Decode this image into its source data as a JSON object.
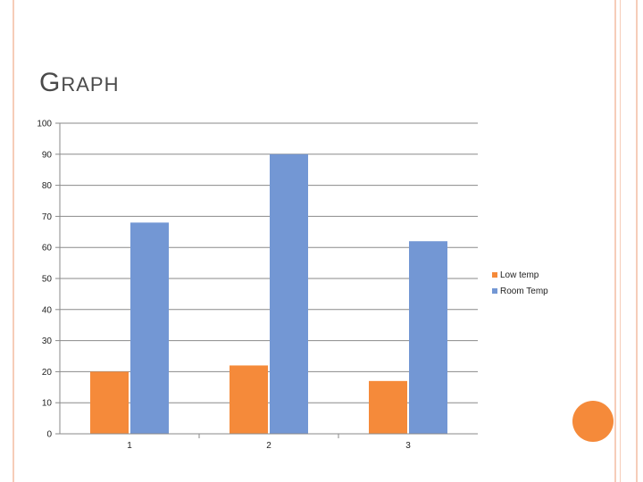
{
  "slide": {
    "title": "GRAPH"
  },
  "colors": {
    "series_low": "#f58a3a",
    "series_room": "#7397d4",
    "accent": "#f58a3a",
    "frame": "#f6cdb9"
  },
  "icons": [
    "decorative-circle"
  ],
  "chart_data": {
    "type": "bar",
    "categories": [
      "1",
      "2",
      "3"
    ],
    "series": [
      {
        "name": "Low temp",
        "values": [
          20,
          22,
          17
        ]
      },
      {
        "name": "Room Temp",
        "values": [
          68,
          90,
          62
        ]
      }
    ],
    "title": "",
    "xlabel": "",
    "ylabel": "",
    "ylim": [
      0,
      100
    ],
    "yticks": [
      "0",
      "10",
      "20",
      "30",
      "40",
      "50",
      "60",
      "70",
      "80",
      "90",
      "100"
    ],
    "grid": true,
    "legend_position": "right"
  }
}
